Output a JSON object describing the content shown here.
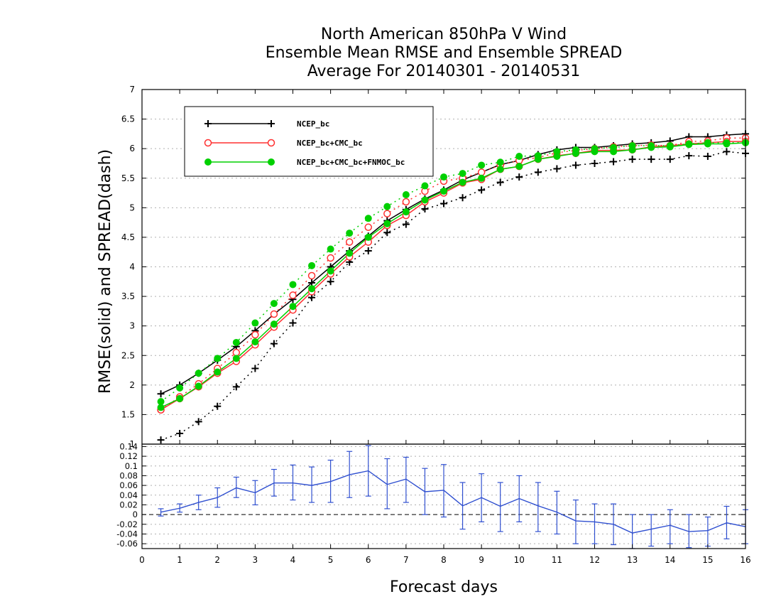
{
  "title_lines": [
    "North American 850hPa V Wind",
    "Ensemble Mean RMSE and Ensemble SPREAD",
    "Average For 20140301 - 20140531"
  ],
  "chart_data": [
    {
      "type": "line",
      "ylabel": "RMSE(solid) and SPREAD(dash)",
      "xlabel": "Forecast days",
      "xlim": [
        0,
        16
      ],
      "ylim": [
        1,
        7
      ],
      "x_ticks": [
        "0",
        "1",
        "2",
        "3",
        "4",
        "5",
        "6",
        "7",
        "8",
        "9",
        "10",
        "11",
        "12",
        "13",
        "14",
        "15",
        "16"
      ],
      "y_ticks": [
        "1",
        "1.5",
        "2",
        "2.5",
        "3",
        "3.5",
        "4",
        "4.5",
        "5",
        "5.5",
        "6",
        "6.5",
        "7"
      ],
      "grid": true,
      "legend_position": "top-left",
      "x": [
        0.5,
        1,
        1.5,
        2,
        2.5,
        3,
        3.5,
        4,
        4.5,
        5,
        5.5,
        6,
        6.5,
        7,
        7.5,
        8,
        8.5,
        9,
        9.5,
        10,
        10.5,
        11,
        11.5,
        12,
        12.5,
        13,
        13.5,
        14,
        14.5,
        15,
        15.5,
        16
      ],
      "series": [
        {
          "name": "NCEP_bc",
          "color": "#000000",
          "marker": "plus",
          "rmse": [
            1.85,
            2.0,
            2.2,
            2.42,
            2.65,
            2.92,
            3.2,
            3.45,
            3.73,
            4.0,
            4.27,
            4.52,
            4.78,
            4.97,
            5.15,
            5.3,
            5.47,
            5.6,
            5.73,
            5.8,
            5.9,
            5.98,
            6.02,
            6.02,
            6.05,
            6.08,
            6.1,
            6.13,
            6.2,
            6.2,
            6.23,
            6.25
          ],
          "spread": [
            1.07,
            1.18,
            1.38,
            1.64,
            1.97,
            2.28,
            2.7,
            3.05,
            3.48,
            3.75,
            4.08,
            4.27,
            4.58,
            4.72,
            4.98,
            5.07,
            5.17,
            5.3,
            5.43,
            5.52,
            5.6,
            5.66,
            5.72,
            5.75,
            5.78,
            5.82,
            5.82,
            5.82,
            5.88,
            5.87,
            5.95,
            5.92
          ]
        },
        {
          "name": "NCEP_bc+CMC_bc",
          "color": "#ff3030",
          "marker": "circle",
          "rmse": [
            1.58,
            1.77,
            1.97,
            2.2,
            2.4,
            2.68,
            2.98,
            3.27,
            3.58,
            3.88,
            4.17,
            4.42,
            4.7,
            4.87,
            5.1,
            5.25,
            5.42,
            5.48,
            5.65,
            5.7,
            5.82,
            5.88,
            5.92,
            5.97,
            5.97,
            5.98,
            6.03,
            6.05,
            6.08,
            6.1,
            6.12,
            6.12
          ],
          "spread": [
            1.58,
            1.8,
            2.02,
            2.28,
            2.55,
            2.85,
            3.2,
            3.52,
            3.85,
            4.15,
            4.42,
            4.67,
            4.9,
            5.1,
            5.28,
            5.45,
            5.5,
            5.6,
            5.72,
            5.8,
            5.85,
            5.93,
            5.97,
            6.0,
            6.03,
            6.05,
            6.06,
            6.05,
            6.12,
            6.13,
            6.18,
            6.18
          ]
        },
        {
          "name": "NCEP_bc+CMC_bc+FNMOC_bc",
          "color": "#00d000",
          "marker": "dot",
          "rmse": [
            1.62,
            1.77,
            1.98,
            2.22,
            2.45,
            2.73,
            3.03,
            3.33,
            3.63,
            3.93,
            4.23,
            4.5,
            4.73,
            4.93,
            5.13,
            5.28,
            5.43,
            5.5,
            5.65,
            5.7,
            5.82,
            5.87,
            5.92,
            5.95,
            5.95,
            5.98,
            6.02,
            6.03,
            6.07,
            6.08,
            6.08,
            6.1
          ],
          "spread": [
            1.72,
            1.95,
            2.2,
            2.45,
            2.72,
            3.05,
            3.38,
            3.7,
            4.02,
            4.3,
            4.57,
            4.82,
            5.02,
            5.22,
            5.37,
            5.52,
            5.58,
            5.72,
            5.77,
            5.87,
            5.88,
            5.95,
            5.98,
            6.0,
            6.02,
            6.05,
            6.05,
            6.05,
            6.08,
            6.1,
            6.1,
            6.1
          ]
        }
      ]
    },
    {
      "type": "line",
      "xlim": [
        0,
        16
      ],
      "ylim": [
        -0.07,
        0.145
      ],
      "y_ticks": [
        "0.14",
        "0.12",
        "0.1",
        "0.08",
        "0.06",
        "0.04",
        "0.02",
        "0",
        "-0.02",
        "-0.04",
        "-0.06"
      ],
      "grid": true,
      "color": "#3050d0",
      "x": [
        0.5,
        1,
        1.5,
        2,
        2.5,
        3,
        3.5,
        4,
        4.5,
        5,
        5.5,
        6,
        6.5,
        7,
        7.5,
        8,
        8.5,
        9,
        9.5,
        10,
        10.5,
        11,
        11.5,
        12,
        12.5,
        13,
        13.5,
        14,
        14.5,
        15,
        15.5,
        16
      ],
      "values": [
        0.005,
        0.013,
        0.025,
        0.035,
        0.055,
        0.045,
        0.065,
        0.065,
        0.06,
        0.068,
        0.082,
        0.09,
        0.062,
        0.073,
        0.047,
        0.05,
        0.018,
        0.035,
        0.017,
        0.033,
        0.018,
        0.005,
        -0.013,
        -0.015,
        -0.02,
        -0.038,
        -0.03,
        -0.022,
        -0.035,
        -0.033,
        -0.017,
        -0.025
      ],
      "err_low": [
        -0.003,
        0.005,
        0.01,
        0.015,
        0.035,
        0.02,
        0.038,
        0.03,
        0.025,
        0.025,
        0.035,
        0.038,
        0.012,
        0.025,
        0.0,
        -0.005,
        -0.03,
        -0.015,
        -0.035,
        -0.015,
        -0.035,
        -0.04,
        -0.06,
        -0.06,
        -0.062,
        -0.07,
        -0.065,
        -0.06,
        -0.068,
        -0.065,
        -0.05,
        -0.06
      ],
      "err_high": [
        0.012,
        0.022,
        0.04,
        0.055,
        0.077,
        0.07,
        0.093,
        0.102,
        0.098,
        0.112,
        0.13,
        0.142,
        0.115,
        0.118,
        0.095,
        0.103,
        0.066,
        0.084,
        0.066,
        0.08,
        0.066,
        0.048,
        0.03,
        0.022,
        0.022,
        0.0,
        0.0,
        0.01,
        0.0,
        -0.005,
        0.017,
        0.01
      ]
    }
  ]
}
